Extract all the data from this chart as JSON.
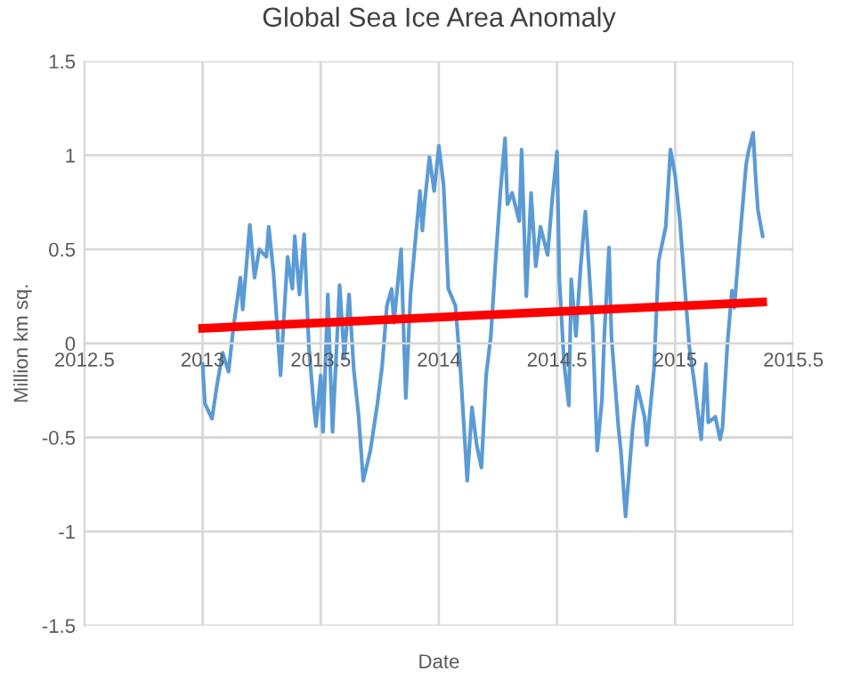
{
  "chart_data": {
    "type": "line",
    "title": "Global Sea Ice Area Anomaly",
    "xlabel": "Date",
    "ylabel": "Million km sq.",
    "xlim": [
      2012.5,
      2015.5
    ],
    "xticks": [
      2012.5,
      2013,
      2013.5,
      2014,
      2014.5,
      2015,
      2015.5
    ],
    "ylim": [
      -1.5,
      1.5
    ],
    "yticks": [
      -1.5,
      -1,
      -0.5,
      0,
      0.5,
      1,
      1.5
    ],
    "grid": true,
    "legend": false,
    "marker": "none",
    "line_style": "solid",
    "series": [
      {
        "color": "#5b9bd5",
        "x": [
          2013.0,
          2013.01,
          2013.04,
          2013.06,
          2013.085,
          2013.11,
          2013.13,
          2013.16,
          2013.17,
          2013.2,
          2013.22,
          2013.24,
          2013.27,
          2013.28,
          2013.3,
          2013.33,
          2013.35,
          2013.36,
          2013.38,
          2013.39,
          2013.41,
          2013.43,
          2013.45,
          2013.47,
          2013.48,
          2013.5,
          2013.51,
          2013.53,
          2013.55,
          2013.58,
          2013.6,
          2013.62,
          2013.64,
          2013.66,
          2013.68,
          2013.71,
          2013.74,
          2013.76,
          2013.78,
          2013.8,
          2013.81,
          2013.84,
          2013.86,
          2013.88,
          2013.9,
          2013.92,
          2013.93,
          2013.94,
          2013.96,
          2013.98,
          2014.0,
          2014.02,
          2014.04,
          2014.07,
          2014.09,
          2014.12,
          2014.14,
          2014.16,
          2014.18,
          2014.2,
          2014.22,
          2014.24,
          2014.26,
          2014.28,
          2014.29,
          2014.31,
          2014.34,
          2014.35,
          2014.37,
          2014.39,
          2014.41,
          2014.43,
          2014.46,
          2014.48,
          2014.5,
          2014.51,
          2014.53,
          2014.55,
          2014.56,
          2014.58,
          2014.6,
          2014.62,
          2014.65,
          2014.67,
          2014.69,
          2014.7,
          2014.72,
          2014.73,
          2014.76,
          2014.77,
          2014.79,
          2014.82,
          2014.84,
          2014.87,
          2014.88,
          2014.91,
          2014.93,
          2014.96,
          2014.98,
          2015.0,
          2015.02,
          2015.04,
          2015.06,
          2015.08,
          2015.11,
          2015.13,
          2015.14,
          2015.17,
          2015.19,
          2015.2,
          2015.22,
          2015.24,
          2015.25,
          2015.27,
          2015.3,
          2015.31,
          2015.33,
          2015.34,
          2015.35,
          2015.37
        ],
        "values": [
          -0.11,
          -0.32,
          -0.4,
          -0.23,
          -0.05,
          -0.15,
          0.08,
          0.35,
          0.18,
          0.63,
          0.35,
          0.5,
          0.46,
          0.62,
          0.38,
          -0.17,
          0.26,
          0.46,
          0.29,
          0.57,
          0.26,
          0.58,
          -0.02,
          -0.32,
          -0.44,
          -0.17,
          -0.47,
          0.26,
          -0.47,
          0.31,
          -0.08,
          0.26,
          -0.14,
          -0.38,
          -0.73,
          -0.57,
          -0.32,
          -0.12,
          0.2,
          0.29,
          0.11,
          0.5,
          -0.29,
          0.26,
          0.54,
          0.81,
          0.6,
          0.75,
          0.99,
          0.81,
          1.05,
          0.84,
          0.29,
          0.2,
          -0.11,
          -0.73,
          -0.34,
          -0.54,
          -0.66,
          -0.17,
          0.04,
          0.44,
          0.8,
          1.09,
          0.74,
          0.8,
          0.65,
          1.03,
          0.25,
          0.8,
          0.41,
          0.62,
          0.47,
          0.77,
          1.02,
          0.34,
          -0.11,
          -0.33,
          0.34,
          0.04,
          0.41,
          0.7,
          0.1,
          -0.57,
          -0.3,
          0.04,
          0.51,
          0.04,
          -0.45,
          -0.57,
          -0.92,
          -0.45,
          -0.23,
          -0.39,
          -0.54,
          -0.14,
          0.44,
          0.62,
          1.03,
          0.89,
          0.65,
          0.31,
          -0.02,
          -0.2,
          -0.51,
          -0.11,
          -0.42,
          -0.39,
          -0.51,
          -0.45,
          -0.02,
          0.28,
          0.19,
          0.5,
          0.95,
          1.02,
          1.12,
          0.89,
          0.71,
          0.57
        ]
      },
      {
        "color": "#ff0000",
        "x": [
          2013.0,
          2015.37
        ],
        "values": [
          0.08,
          0.22
        ]
      }
    ]
  }
}
